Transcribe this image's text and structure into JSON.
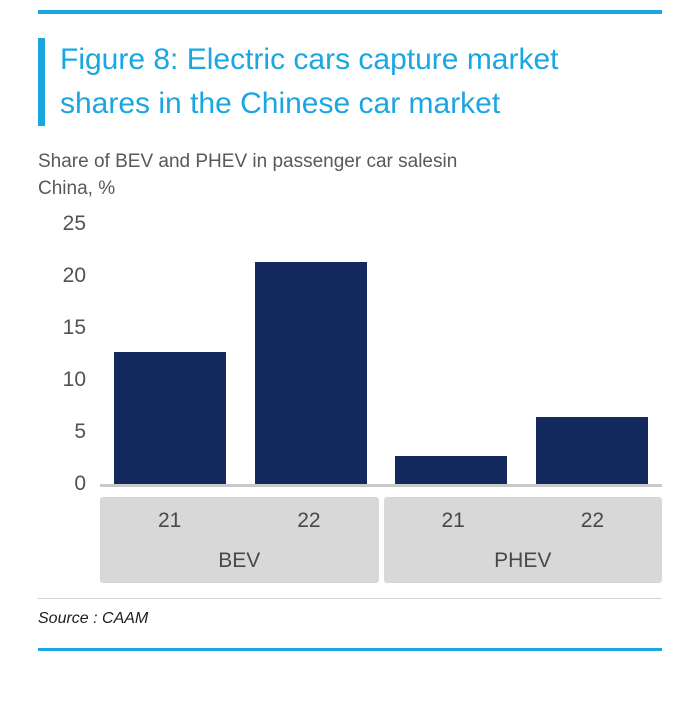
{
  "colors": {
    "accent_cyan": "#1aa7e1",
    "bar_navy": "#14295e",
    "band_gray": "#d8d8d8",
    "text_gray": "#58595b"
  },
  "figure": {
    "title_line1": "Figure 8: Electric cars capture market",
    "title_line2": "shares in the Chinese car market",
    "subtitle_line1": "Share of BEV and PHEV in passenger car salesin",
    "subtitle_line2": "China, %",
    "source": "Source : CAAM"
  },
  "chart_data": {
    "type": "bar",
    "title": "Figure 8: Electric cars capture market shares in the Chinese car market",
    "subtitle": "Share of BEV and PHEV in passenger car salesin China, %",
    "ylabel": "Share of BEV and PHEV in passenger car sales in China, %",
    "xlabel": "",
    "ylim": [
      0,
      25
    ],
    "yticks": [
      0,
      5,
      10,
      15,
      20,
      25
    ],
    "grid": false,
    "legend": "none",
    "bar_color": "#14295e",
    "groups": [
      {
        "label": "BEV",
        "categories": [
          "21",
          "22"
        ],
        "values": [
          12.7,
          21.3
        ]
      },
      {
        "label": "PHEV",
        "categories": [
          "21",
          "22"
        ],
        "values": [
          2.7,
          6.4
        ]
      }
    ],
    "source": "Source : CAAM"
  }
}
